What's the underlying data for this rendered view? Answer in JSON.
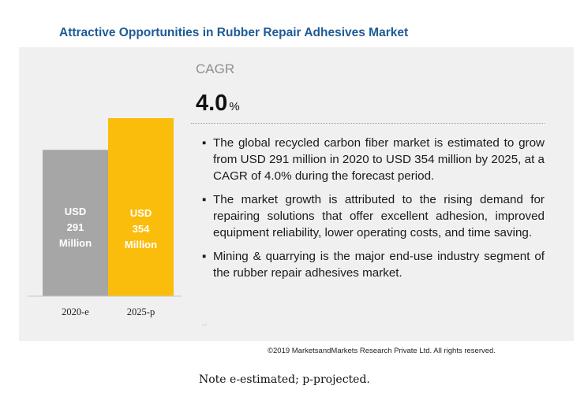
{
  "title": "Attractive Opportunities in Rubber Repair Adhesives Market",
  "cagr": {
    "label": "CAGR",
    "value": "4.0",
    "unit": "%"
  },
  "bullets": [
    "The global recycled carbon fiber market is estimated to grow from  USD 291 million in 2020 to USD 354 million by 2025, at a CAGR of 4.0% during the forecast period.",
    "The market growth is attributed to the rising demand for repairing solutions that offer excellent adhesion, improved equipment reliability, lower operating costs, and time saving.",
    "Mining & quarrying is the major end-use industry segment of the rubber repair adhesives market."
  ],
  "ellipsis": "..",
  "copyright": "©2019 MarketsandMarkets Research Private Ltd. All rights reserved.",
  "note": "Note e-estimated; p-projected.",
  "colors": {
    "bar_2020": "#a6a6a6",
    "bar_2025": "#fbbd0b",
    "title": "#1f5a96"
  },
  "chart_data": {
    "type": "bar",
    "categories": [
      "2020-e",
      "2025-p"
    ],
    "values": [
      291,
      354
    ],
    "data_labels": [
      [
        "USD",
        "291",
        "Million"
      ],
      [
        "USD",
        "354",
        "Million"
      ]
    ],
    "title": "",
    "xlabel": "",
    "ylabel": "",
    "ylim": [
      0,
      354
    ]
  }
}
